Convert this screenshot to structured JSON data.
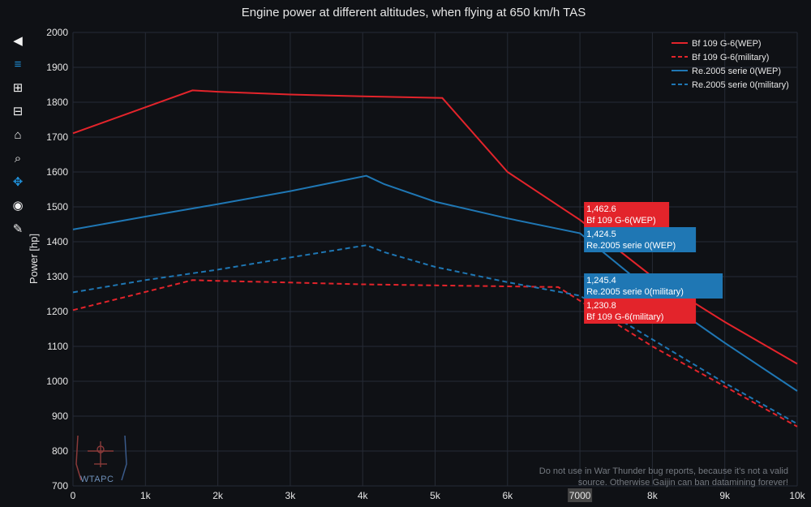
{
  "toolbar": [
    {
      "name": "pan-back-icon",
      "glyph": "◀"
    },
    {
      "name": "layers-icon",
      "glyph": "≡"
    },
    {
      "name": "zoom-in-icon",
      "glyph": "⊞"
    },
    {
      "name": "zoom-out-icon",
      "glyph": "⊟"
    },
    {
      "name": "home-icon",
      "glyph": "⌂"
    },
    {
      "name": "zoom-select-icon",
      "glyph": "⌕"
    },
    {
      "name": "pan-icon",
      "glyph": "✥"
    },
    {
      "name": "camera-icon",
      "glyph": "◉"
    },
    {
      "name": "edit-icon",
      "glyph": "✎"
    }
  ],
  "watermark": {
    "text": "WTAPC"
  },
  "disclaimer": "Do not use in War Thunder bug reports, because it's not a valid source. Otherwise Gaijin can ban datamining forever!",
  "chart_data": {
    "type": "line",
    "title": "Engine power at different altitudes, when flying at 650 km/h TAS",
    "xlabel": "",
    "ylabel": "Power [hp]",
    "xlim": [
      0,
      10000
    ],
    "ylim": [
      700,
      2000
    ],
    "xticks": [
      0,
      1000,
      2000,
      3000,
      4000,
      5000,
      6000,
      7000,
      8000,
      9000,
      10000
    ],
    "xtick_labels": [
      "0",
      "1k",
      "2k",
      "3k",
      "4k",
      "5k",
      "6k",
      "7000",
      "8k",
      "9k",
      "10k"
    ],
    "highlight_x": 7000,
    "yticks": [
      700,
      800,
      900,
      1000,
      1100,
      1200,
      1300,
      1400,
      1500,
      1600,
      1700,
      1800,
      1900,
      2000
    ],
    "grid": true,
    "legend_position": "top-right",
    "series": [
      {
        "name": "Bf 109 G-6(WEP)",
        "color": "#e3242b",
        "dash": "solid",
        "x": [
          0,
          1650,
          2000,
          3000,
          4000,
          5100,
          6000,
          7000,
          8000,
          9000,
          10000
        ],
        "y": [
          1711,
          1834,
          1830,
          1822,
          1817,
          1812,
          1600,
          1462.6,
          1300,
          1170,
          1050
        ]
      },
      {
        "name": "Bf 109 G-6(military)",
        "color": "#e3242b",
        "dash": "dashed",
        "x": [
          0,
          1650,
          2000,
          3000,
          4000,
          5000,
          6000,
          6700,
          7000,
          8000,
          9000,
          10000
        ],
        "y": [
          1204,
          1290,
          1288,
          1283,
          1278,
          1275,
          1272,
          1270,
          1230.8,
          1100,
          985,
          870
        ]
      },
      {
        "name": "Re.2005 serie 0(WEP)",
        "color": "#1f77b4",
        "dash": "solid",
        "x": [
          0,
          1000,
          2000,
          3000,
          4050,
          4300,
          5000,
          6000,
          7000,
          8000,
          9000,
          10000
        ],
        "y": [
          1435,
          1472,
          1508,
          1545,
          1589,
          1565,
          1515,
          1467,
          1424.5,
          1255,
          1110,
          972
        ]
      },
      {
        "name": "Re.2005 serie 0(military)",
        "color": "#1f77b4",
        "dash": "dashed",
        "x": [
          0,
          1000,
          2000,
          3000,
          4050,
          4300,
          5000,
          6000,
          7000,
          8000,
          9000,
          10000
        ],
        "y": [
          1255,
          1290,
          1320,
          1355,
          1390,
          1370,
          1328,
          1284,
          1245.4,
          1120,
          995,
          878
        ]
      }
    ],
    "hover_labels": [
      {
        "value": "1,462.6",
        "name": "Bf 109 G-6(WEP)",
        "color": "#e3242b",
        "x": 7000,
        "y": 1462.6
      },
      {
        "value": "1,424.5",
        "name": "Re.2005 serie 0(WEP)",
        "color": "#1f77b4",
        "x": 7000,
        "y": 1424.5
      },
      {
        "value": "1,245.4",
        "name": "Re.2005 serie 0(military)",
        "color": "#1f77b4",
        "x": 7000,
        "y": 1245.4
      },
      {
        "value": "1,230.8",
        "name": "Bf 109 G-6(military)",
        "color": "#e3242b",
        "x": 7000,
        "y": 1230.8
      }
    ]
  }
}
